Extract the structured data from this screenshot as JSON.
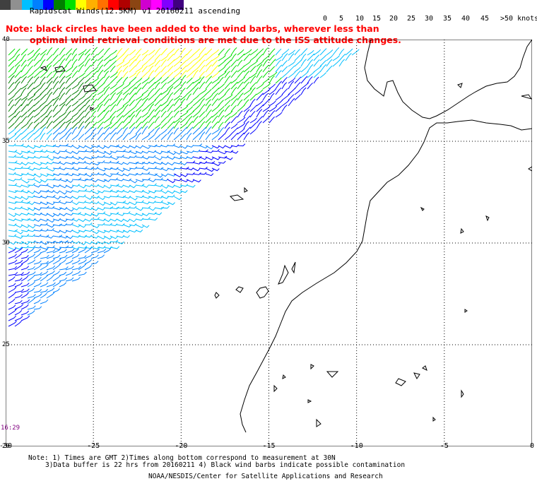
{
  "title": "Rapidscat Winds(12.5KM) v1 20160211 ascending",
  "note_line1": "Note: black circles have been added to the wind barbs, wherever less than",
  "note_line2": "optimal wind retrieval conditions are met due to the ISS attitude changes.",
  "legend": {
    "colors": [
      "#404040",
      "#909090",
      "#00bfff",
      "#0080ff",
      "#0000ff",
      "#008000",
      "#00e000",
      "#ffff00",
      "#ffb000",
      "#ff7000",
      "#ff0000",
      "#b00000",
      "#8b4513",
      "#d000d0",
      "#ff00ff",
      "#8000ff",
      "#400080"
    ],
    "labels": [
      "0",
      "5",
      "10",
      "15",
      "20",
      "25",
      "30",
      "35",
      "40",
      "45",
      ">50 knots"
    ]
  },
  "lat_labels": [
    "40",
    "35",
    "30",
    "25",
    "20"
  ],
  "lon_labels": [
    "-30",
    "-25",
    "-20",
    "-15",
    "-10",
    "-5",
    "0"
  ],
  "time_label": "16:29",
  "footnote_line1": "Note: 1) Times are GMT 2)Times along bottom correspond to measurement at 30N",
  "footnote_line2": "3)Data buffer is 22 hrs from 20160211 4) Black wind barbs indicate possible contamination",
  "credit": "NOAA/NESDIS/Center for Satellite Applications and Research"
}
